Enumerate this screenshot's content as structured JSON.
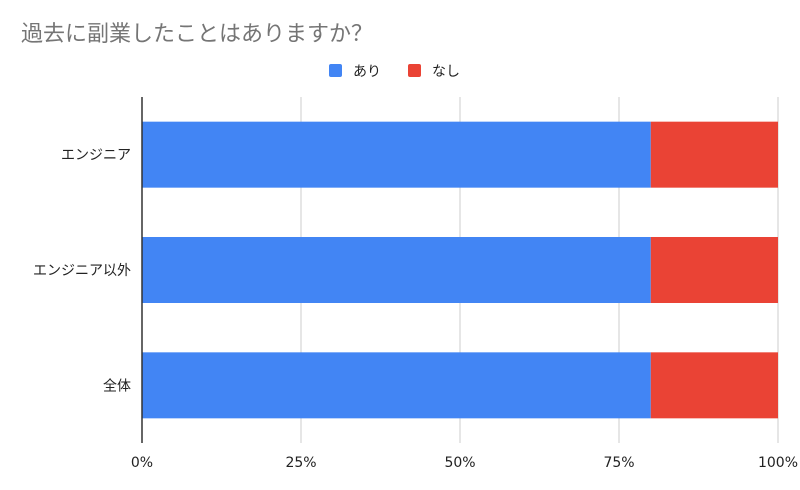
{
  "chart_data": {
    "type": "bar",
    "orientation": "horizontal",
    "stacked": "percent",
    "title": "過去に副業したことはありますか？",
    "categories": [
      "エンジニア",
      "エンジニア以外",
      "全体"
    ],
    "series": [
      {
        "name": "あり",
        "color": "#4285F4",
        "values": [
          80,
          80,
          80
        ]
      },
      {
        "name": "なし",
        "color": "#EA4335",
        "values": [
          20,
          20,
          20
        ]
      }
    ],
    "x_ticks": [
      "0%",
      "25%",
      "50%",
      "75%",
      "100%"
    ],
    "xlim": [
      0,
      100
    ],
    "grid": "vertical",
    "legend_position": "top-center"
  }
}
